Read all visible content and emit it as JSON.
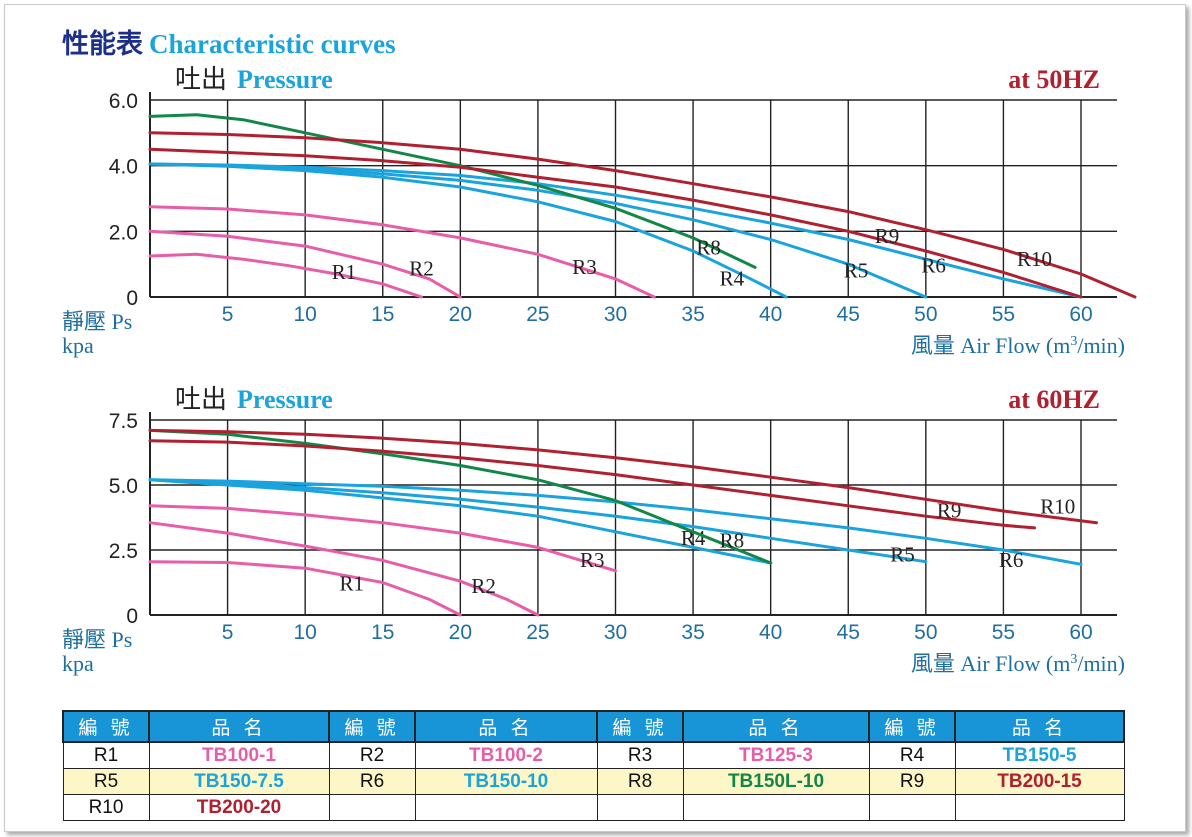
{
  "header": {
    "zh": "性能表",
    "en": "Characteristic curves"
  },
  "colors": {
    "pink": "#e85da8",
    "cyan": "#1aa3dc",
    "green": "#128747",
    "red": "#b02030",
    "navy": "#1c2f8c",
    "axis": "#1e6f9f"
  },
  "charts": [
    {
      "pressure_zh": "吐出",
      "pressure_en": "Pressure",
      "freq": "at 50HZ",
      "yaxis_zh": "靜壓 Ps",
      "yaxis_unit": "kpa",
      "xaxis_zh": "風量",
      "xaxis_en_pre": "Air Flow (m",
      "xaxis_sup": "3",
      "xaxis_en_post": "/min)"
    },
    {
      "pressure_zh": "吐出",
      "pressure_en": "Pressure",
      "freq": "at 60HZ",
      "yaxis_zh": "靜壓 Ps",
      "yaxis_unit": "kpa",
      "xaxis_zh": "風量",
      "xaxis_en_pre": "Air Flow (m",
      "xaxis_sup": "3",
      "xaxis_en_post": "/min)"
    }
  ],
  "chart_data": [
    {
      "type": "line",
      "title": "at 50HZ",
      "xlabel": "風量 Air Flow (m3/min)",
      "ylabel": "靜壓 Ps kpa",
      "xlim": [
        0,
        63
      ],
      "ylim": [
        0,
        6.0
      ],
      "xticks": [
        "5",
        "10",
        "15",
        "20",
        "25",
        "30",
        "35",
        "40",
        "45",
        "50",
        "55",
        "60"
      ],
      "yticks": [
        "0",
        "2.0",
        "4.0",
        "6.0"
      ],
      "series": [
        {
          "name": "R1",
          "color": "pink",
          "label_at": [
            12.5,
            0.55
          ],
          "points": [
            [
              0,
              1.25
            ],
            [
              3,
              1.3
            ],
            [
              6,
              1.15
            ],
            [
              9,
              0.95
            ],
            [
              12,
              0.7
            ],
            [
              15,
              0.4
            ],
            [
              17.5,
              0.0
            ]
          ]
        },
        {
          "name": "R2",
          "color": "pink",
          "label_at": [
            17.5,
            0.65
          ],
          "points": [
            [
              0,
              2.0
            ],
            [
              5,
              1.85
            ],
            [
              10,
              1.55
            ],
            [
              15,
              1.0
            ],
            [
              18,
              0.55
            ],
            [
              20,
              0.0
            ]
          ]
        },
        {
          "name": "R3",
          "color": "pink",
          "label_at": [
            28,
            0.7
          ],
          "points": [
            [
              0,
              2.75
            ],
            [
              5,
              2.68
            ],
            [
              10,
              2.5
            ],
            [
              15,
              2.2
            ],
            [
              20,
              1.8
            ],
            [
              25,
              1.3
            ],
            [
              30,
              0.55
            ],
            [
              32.5,
              0.0
            ]
          ]
        },
        {
          "name": "R4",
          "color": "cyan",
          "label_at": [
            37.5,
            0.35
          ],
          "points": [
            [
              0,
              4.05
            ],
            [
              5,
              3.98
            ],
            [
              10,
              3.85
            ],
            [
              15,
              3.65
            ],
            [
              20,
              3.35
            ],
            [
              25,
              2.9
            ],
            [
              30,
              2.3
            ],
            [
              35,
              1.4
            ],
            [
              38.5,
              0.6
            ],
            [
              41,
              0.0
            ]
          ]
        },
        {
          "name": "R5",
          "color": "cyan",
          "label_at": [
            45.5,
            0.6
          ],
          "points": [
            [
              0,
              4.05
            ],
            [
              5,
              4.0
            ],
            [
              10,
              3.9
            ],
            [
              15,
              3.75
            ],
            [
              20,
              3.55
            ],
            [
              25,
              3.25
            ],
            [
              30,
              2.85
            ],
            [
              35,
              2.35
            ],
            [
              40,
              1.75
            ],
            [
              45,
              1.0
            ],
            [
              50,
              0.0
            ]
          ]
        },
        {
          "name": "R6",
          "color": "cyan",
          "label_at": [
            50.5,
            0.75
          ],
          "points": [
            [
              0,
              4.05
            ],
            [
              5,
              4.02
            ],
            [
              10,
              3.95
            ],
            [
              15,
              3.85
            ],
            [
              20,
              3.7
            ],
            [
              25,
              3.45
            ],
            [
              30,
              3.1
            ],
            [
              35,
              2.7
            ],
            [
              40,
              2.25
            ],
            [
              45,
              1.75
            ],
            [
              50,
              1.15
            ],
            [
              55,
              0.55
            ],
            [
              60,
              0.0
            ]
          ]
        },
        {
          "name": "R8",
          "color": "green",
          "label_at": [
            36,
            1.3
          ],
          "points": [
            [
              0,
              5.5
            ],
            [
              3,
              5.55
            ],
            [
              6,
              5.4
            ],
            [
              10,
              5.0
            ],
            [
              15,
              4.5
            ],
            [
              20,
              4.0
            ],
            [
              25,
              3.4
            ],
            [
              30,
              2.7
            ],
            [
              35,
              1.8
            ],
            [
              39,
              0.9
            ]
          ]
        },
        {
          "name": "R9",
          "color": "red",
          "label_at": [
            47.5,
            1.65
          ],
          "points": [
            [
              0,
              4.5
            ],
            [
              5,
              4.4
            ],
            [
              10,
              4.3
            ],
            [
              15,
              4.15
            ],
            [
              20,
              3.95
            ],
            [
              25,
              3.65
            ],
            [
              30,
              3.35
            ],
            [
              35,
              2.95
            ],
            [
              40,
              2.5
            ],
            [
              45,
              2.0
            ],
            [
              50,
              1.4
            ],
            [
              55,
              0.75
            ],
            [
              60,
              0.0
            ]
          ]
        },
        {
          "name": "R10",
          "color": "red",
          "label_at": [
            57,
            0.95
          ],
          "points": [
            [
              0,
              5.0
            ],
            [
              5,
              4.95
            ],
            [
              10,
              4.85
            ],
            [
              15,
              4.7
            ],
            [
              20,
              4.5
            ],
            [
              25,
              4.2
            ],
            [
              30,
              3.85
            ],
            [
              35,
              3.45
            ],
            [
              40,
              3.05
            ],
            [
              45,
              2.6
            ],
            [
              50,
              2.05
            ],
            [
              55,
              1.45
            ],
            [
              60,
              0.7
            ],
            [
              63.5,
              0.0
            ]
          ]
        }
      ]
    },
    {
      "type": "line",
      "title": "at 60HZ",
      "xlabel": "風量 Air Flow (m3/min)",
      "ylabel": "靜壓 Ps kpa",
      "xlim": [
        0,
        63
      ],
      "ylim": [
        0,
        7.5
      ],
      "xticks": [
        "5",
        "10",
        "15",
        "20",
        "25",
        "30",
        "35",
        "40",
        "45",
        "50",
        "55",
        "60"
      ],
      "yticks": [
        "0",
        "2.5",
        "5.0",
        "7.5"
      ],
      "series": [
        {
          "name": "R1",
          "color": "pink",
          "label_at": [
            13,
            0.95
          ],
          "points": [
            [
              0,
              2.05
            ],
            [
              5,
              2.02
            ],
            [
              10,
              1.8
            ],
            [
              15,
              1.25
            ],
            [
              18,
              0.6
            ],
            [
              20,
              0.0
            ]
          ]
        },
        {
          "name": "R2",
          "color": "pink",
          "label_at": [
            21.5,
            0.85
          ],
          "points": [
            [
              0,
              3.55
            ],
            [
              5,
              3.15
            ],
            [
              10,
              2.65
            ],
            [
              15,
              2.1
            ],
            [
              20,
              1.3
            ],
            [
              23,
              0.6
            ],
            [
              25,
              0.0
            ]
          ]
        },
        {
          "name": "R3",
          "color": "pink",
          "label_at": [
            28.5,
            1.85
          ],
          "points": [
            [
              0,
              4.2
            ],
            [
              5,
              4.1
            ],
            [
              10,
              3.85
            ],
            [
              15,
              3.55
            ],
            [
              20,
              3.15
            ],
            [
              25,
              2.6
            ],
            [
              30,
              1.7
            ]
          ]
        },
        {
          "name": "R4",
          "color": "cyan",
          "label_at": [
            35,
            2.7
          ],
          "points": [
            [
              0,
              5.2
            ],
            [
              5,
              5.0
            ],
            [
              10,
              4.8
            ],
            [
              15,
              4.5
            ],
            [
              20,
              4.2
            ],
            [
              25,
              3.8
            ],
            [
              30,
              3.2
            ],
            [
              35,
              2.6
            ],
            [
              40,
              2.0
            ]
          ]
        },
        {
          "name": "R5",
          "color": "cyan",
          "label_at": [
            48.5,
            2.05
          ],
          "points": [
            [
              0,
              5.2
            ],
            [
              5,
              5.1
            ],
            [
              10,
              4.9
            ],
            [
              15,
              4.7
            ],
            [
              20,
              4.45
            ],
            [
              25,
              4.15
            ],
            [
              30,
              3.8
            ],
            [
              35,
              3.4
            ],
            [
              40,
              2.95
            ],
            [
              45,
              2.5
            ],
            [
              50,
              2.05
            ]
          ]
        },
        {
          "name": "R6",
          "color": "cyan",
          "label_at": [
            55.5,
            1.85
          ],
          "points": [
            [
              0,
              5.2
            ],
            [
              5,
              5.15
            ],
            [
              10,
              5.05
            ],
            [
              15,
              4.95
            ],
            [
              20,
              4.8
            ],
            [
              25,
              4.6
            ],
            [
              30,
              4.35
            ],
            [
              35,
              4.05
            ],
            [
              40,
              3.7
            ],
            [
              45,
              3.35
            ],
            [
              50,
              2.95
            ],
            [
              55,
              2.5
            ],
            [
              60,
              1.95
            ]
          ]
        },
        {
          "name": "R8",
          "color": "green",
          "label_at": [
            37.5,
            2.6
          ],
          "points": [
            [
              0,
              7.1
            ],
            [
              5,
              6.95
            ],
            [
              10,
              6.6
            ],
            [
              15,
              6.2
            ],
            [
              20,
              5.75
            ],
            [
              25,
              5.2
            ],
            [
              30,
              4.4
            ],
            [
              35,
              3.2
            ],
            [
              40,
              2.0
            ]
          ]
        },
        {
          "name": "R9",
          "color": "red",
          "label_at": [
            51.5,
            3.75
          ],
          "points": [
            [
              0,
              6.7
            ],
            [
              5,
              6.65
            ],
            [
              10,
              6.5
            ],
            [
              15,
              6.3
            ],
            [
              20,
              6.05
            ],
            [
              25,
              5.75
            ],
            [
              30,
              5.4
            ],
            [
              35,
              5.0
            ],
            [
              40,
              4.6
            ],
            [
              45,
              4.2
            ],
            [
              50,
              3.8
            ],
            [
              55,
              3.45
            ],
            [
              57,
              3.35
            ]
          ]
        },
        {
          "name": "R10",
          "color": "red",
          "label_at": [
            58.5,
            3.9
          ],
          "points": [
            [
              0,
              7.1
            ],
            [
              5,
              7.05
            ],
            [
              10,
              6.95
            ],
            [
              15,
              6.8
            ],
            [
              20,
              6.6
            ],
            [
              25,
              6.35
            ],
            [
              30,
              6.05
            ],
            [
              35,
              5.7
            ],
            [
              40,
              5.3
            ],
            [
              45,
              4.9
            ],
            [
              50,
              4.45
            ],
            [
              55,
              4.0
            ],
            [
              61,
              3.55
            ]
          ]
        }
      ]
    }
  ],
  "legend_table": {
    "headers": [
      "編 號",
      "品 名",
      "編 號",
      "品 名",
      "編 號",
      "品 名",
      "編 號",
      "品 名"
    ],
    "rows": [
      [
        {
          "code": "R1",
          "name": "TB100-1",
          "color": "pink"
        },
        {
          "code": "R2",
          "name": "TB100-2",
          "color": "pink"
        },
        {
          "code": "R3",
          "name": "TB125-3",
          "color": "pink"
        },
        {
          "code": "R4",
          "name": "TB150-5",
          "color": "cyan"
        }
      ],
      [
        {
          "code": "R5",
          "name": "TB150-7.5",
          "color": "cyan"
        },
        {
          "code": "R6",
          "name": "TB150-10",
          "color": "cyan"
        },
        {
          "code": "R8",
          "name": "TB150L-10",
          "color": "green"
        },
        {
          "code": "R9",
          "name": "TB200-15",
          "color": "red"
        }
      ],
      [
        {
          "code": "R10",
          "name": "TB200-20",
          "color": "red"
        },
        {
          "code": "",
          "name": "",
          "color": "red"
        },
        {
          "code": "",
          "name": "",
          "color": "red"
        },
        {
          "code": "",
          "name": "",
          "color": "red"
        }
      ]
    ]
  }
}
